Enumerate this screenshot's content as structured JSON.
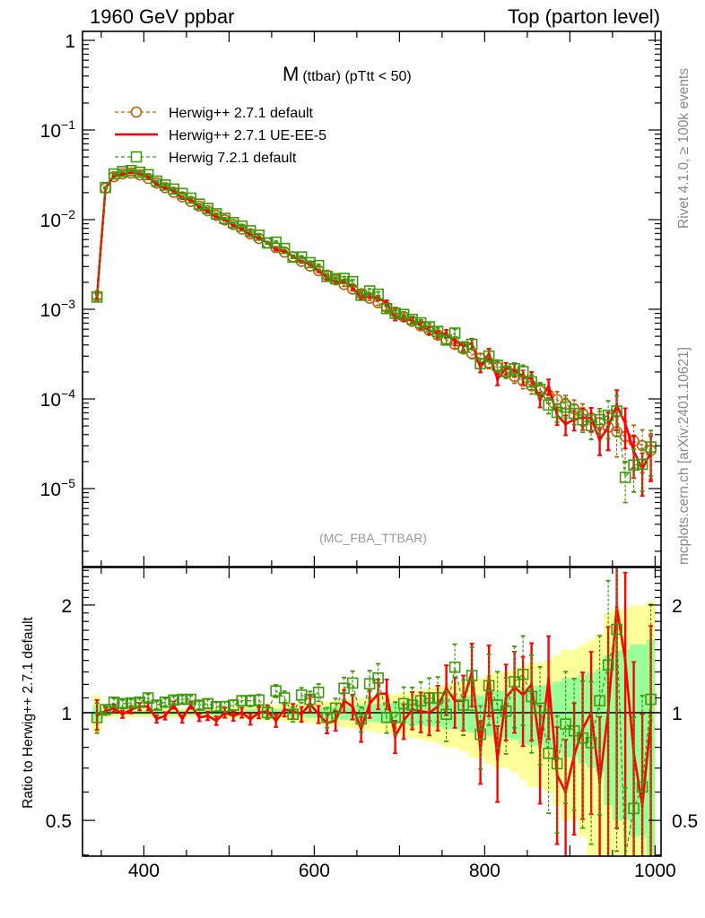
{
  "header": {
    "left": "1960 GeV ppbar",
    "right": "Top (parton level)"
  },
  "side": {
    "rivet": "Rivet 4.1.0, ≥ 100k events",
    "mcplots": "mcplots.cern.ch [arXiv:2401.10621]"
  },
  "chart_data": {
    "type": "line",
    "title_main": "M",
    "title_sub": "(ttbar) (pTtt < 50)",
    "analysis": "(MC_FBA_TTBAR)",
    "xlabel": "",
    "ylabel": "",
    "ratio_ylabel": "Ratio to Herwig++ 2.7.1 default",
    "xlim": [
      328,
      1007
    ],
    "ylim": [
      1.35e-06,
      1.26
    ],
    "yscale": "log",
    "ratio_ylim": [
      0.4,
      2.55
    ],
    "ratio_yscale": "log",
    "legend_position": "top-left",
    "xticks": [
      {
        "value": 400,
        "label": "400"
      },
      {
        "value": 600,
        "label": "600"
      },
      {
        "value": 800,
        "label": "800"
      },
      {
        "value": 1000,
        "label": "1000"
      }
    ],
    "yticks": [
      {
        "value": 1,
        "label": "1",
        "exp": ""
      },
      {
        "value": 0.1,
        "label": "10",
        "exp": "−1"
      },
      {
        "value": 0.01,
        "label": "10",
        "exp": "−2"
      },
      {
        "value": 0.001,
        "label": "10",
        "exp": "−3"
      },
      {
        "value": 0.0001,
        "label": "10",
        "exp": "−4"
      },
      {
        "value": 1e-05,
        "label": "10",
        "exp": "−5"
      }
    ],
    "ratio_yticks": [
      {
        "value": 2,
        "label": "2"
      },
      {
        "value": 1,
        "label": "1"
      },
      {
        "value": 0.5,
        "label": "0.5"
      }
    ],
    "x": [
      345,
      355,
      365,
      375,
      385,
      395,
      405,
      415,
      425,
      435,
      445,
      455,
      465,
      475,
      485,
      495,
      505,
      515,
      525,
      535,
      545,
      555,
      565,
      575,
      585,
      595,
      605,
      615,
      625,
      635,
      645,
      655,
      665,
      675,
      685,
      695,
      705,
      715,
      725,
      735,
      745,
      755,
      765,
      775,
      785,
      795,
      805,
      815,
      825,
      835,
      845,
      855,
      865,
      875,
      885,
      895,
      905,
      915,
      925,
      935,
      945,
      955,
      965,
      975,
      985,
      995
    ],
    "series": [
      {
        "name": "Herwig++ 2.7.1 default",
        "color": "#b8600c",
        "style": "dashed",
        "marker": "circle",
        "reference": true,
        "values": [
          0.00141,
          0.0224,
          0.0302,
          0.0324,
          0.0331,
          0.0316,
          0.02884,
          0.02562,
          0.02276,
          0.02022,
          0.01796,
          0.01595,
          0.01417,
          0.01259,
          0.01118,
          0.00993,
          0.00882,
          0.00784,
          0.00696,
          0.00618,
          0.00549,
          0.00488,
          0.00434,
          0.00385,
          0.00342,
          0.00304,
          0.0027,
          0.0024,
          0.00213,
          0.00189,
          0.00168,
          0.00149,
          0.00133,
          0.00118,
          0.00105,
          0.000931,
          0.000827,
          0.000735,
          0.000653,
          0.00058,
          0.000515,
          0.000458,
          0.000406,
          0.000361,
          0.000321,
          0.000285,
          0.000253,
          0.000225,
          0.0002,
          0.000178,
          0.000158,
          0.00014,
          0.000124,
          0.000111,
          9.83e-05,
          8.73e-05,
          7.76e-05,
          6.89e-05,
          6.12e-05,
          5.44e-05,
          4.83e-05,
          4.29e-05,
          3.81e-05,
          3.39e-05,
          3.01e-05,
          2.67e-05
        ]
      },
      {
        "name": "Herwig++ 2.7.1 UE-EE-5",
        "color": "#ff0000",
        "style": "solid",
        "marker": "none",
        "ratio": [
          0.99,
          1.01,
          1.03,
          0.99,
          1.02,
          1.04,
          1.04,
          0.96,
          0.98,
          1.05,
          0.96,
          1.05,
          0.97,
          0.98,
          0.95,
          1.0,
          0.98,
          1.0,
          0.96,
          1.0,
          1.01,
          0.95,
          1.02,
          1.01,
          0.99,
          1.06,
          0.99,
          0.935,
          0.95,
          1.08,
          1.04,
          0.9,
          1.06,
          1.13,
          1.13,
          0.86,
          0.95,
          1.02,
          1.01,
          1.0,
          1.04,
          1.17,
          1.08,
          1.08,
          1.3,
          0.79,
          1.26,
          0.74,
          1.1,
          1.18,
          1.12,
          1.2,
          0.8,
          1.24,
          0.67,
          0.6,
          0.76,
          0.9,
          1.0,
          0.64,
          1.01,
          1.98,
          1.4,
          0.77,
          0.55,
          0.95
        ]
      },
      {
        "name": "Herwig 7.2.1 default",
        "color": "#3c9a0a",
        "style": "dashed",
        "marker": "square",
        "ratio": [
          0.97,
          1.02,
          1.07,
          1.06,
          1.065,
          1.07,
          1.1,
          1.05,
          1.07,
          1.085,
          1.09,
          1.09,
          1.05,
          1.06,
          1.04,
          1.04,
          1.05,
          1.08,
          1.08,
          1.085,
          1.0,
          1.15,
          1.1,
          0.99,
          1.12,
          1.09,
          1.14,
          0.97,
          1.03,
          1.17,
          1.21,
          0.96,
          1.205,
          1.25,
          0.97,
          0.97,
          1.06,
          1.05,
          1.08,
          1.1,
          1.1,
          0.99,
          1.34,
          1.05,
          1.27,
          0.87,
          1.19,
          1.05,
          1.01,
          1.22,
          1.28,
          1.11,
          1.03,
          0.77,
          0.72,
          0.93,
          0.89,
          0.85,
          0.825,
          1.08,
          1.36,
          1.71,
          0.35,
          0.54,
          0.62,
          1.09
        ]
      }
    ],
    "band_outer": [
      0.12,
      0.03,
      0.03,
      0.03,
      0.03,
      0.03,
      0.03,
      0.03,
      0.03,
      0.03,
      0.03,
      0.03,
      0.03,
      0.035,
      0.035,
      0.04,
      0.04,
      0.04,
      0.045,
      0.045,
      0.05,
      0.05,
      0.055,
      0.06,
      0.06,
      0.065,
      0.07,
      0.08,
      0.08,
      0.09,
      0.1,
      0.1,
      0.11,
      0.12,
      0.12,
      0.13,
      0.14,
      0.15,
      0.16,
      0.17,
      0.18,
      0.2,
      0.2,
      0.22,
      0.25,
      0.25,
      0.28,
      0.3,
      0.3,
      0.32,
      0.35,
      0.38,
      0.38,
      0.4,
      0.45,
      0.5,
      0.5,
      0.55,
      0.6,
      0.65,
      0.9,
      0.95,
      0.95,
      1.0,
      1.0,
      1.05
    ],
    "band_inner": [
      0.05,
      0.012,
      0.012,
      0.012,
      0.012,
      0.012,
      0.012,
      0.014,
      0.014,
      0.014,
      0.015,
      0.015,
      0.016,
      0.017,
      0.018,
      0.019,
      0.02,
      0.02,
      0.022,
      0.022,
      0.024,
      0.025,
      0.027,
      0.028,
      0.03,
      0.032,
      0.035,
      0.038,
      0.04,
      0.045,
      0.05,
      0.05,
      0.055,
      0.06,
      0.06,
      0.065,
      0.07,
      0.075,
      0.08,
      0.085,
      0.09,
      0.1,
      0.1,
      0.11,
      0.12,
      0.12,
      0.14,
      0.15,
      0.15,
      0.16,
      0.18,
      0.19,
      0.19,
      0.2,
      0.22,
      0.25,
      0.25,
      0.28,
      0.3,
      0.32,
      0.45,
      0.5,
      0.5,
      0.55,
      0.55,
      0.6
    ],
    "band_colors": {
      "outer": "#ffff99",
      "inner": "#99ff99"
    }
  }
}
